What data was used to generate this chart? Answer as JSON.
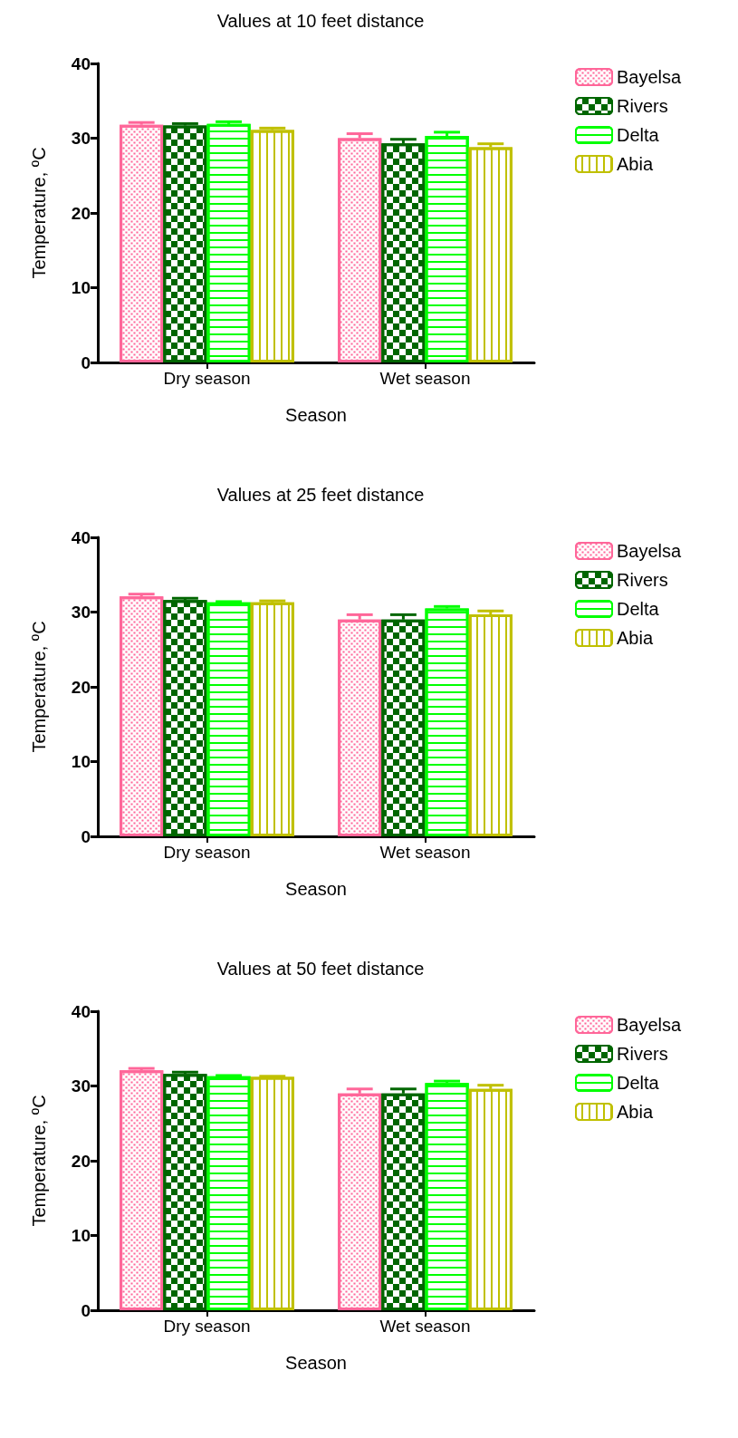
{
  "chart_data": [
    {
      "type": "bar",
      "title": "Values at 10 feet distance",
      "xlabel": "Season",
      "ylabel": "Temperature, ºC",
      "categories": [
        "Dry season",
        "Wet season"
      ],
      "ylim": [
        0,
        40
      ],
      "yticks": [
        0,
        10,
        20,
        30,
        40
      ],
      "legend": "top right",
      "grid": false,
      "series": [
        {
          "name": "Bayelsa",
          "color": "#ff6699",
          "values": [
            31.8,
            30.0
          ],
          "errors": [
            0.3,
            0.6
          ]
        },
        {
          "name": "Rivers",
          "color": "#006600",
          "values": [
            31.7,
            29.3
          ],
          "errors": [
            0.25,
            0.55
          ]
        },
        {
          "name": "Delta",
          "color": "#00ff00",
          "values": [
            31.9,
            30.3
          ],
          "errors": [
            0.3,
            0.5
          ]
        },
        {
          "name": "Abia",
          "color": "#c0c000",
          "values": [
            31.1,
            28.8
          ],
          "errors": [
            0.25,
            0.45
          ]
        }
      ]
    },
    {
      "type": "bar",
      "title": "Values at 25 feet distance",
      "xlabel": "Season",
      "ylabel": "Temperature, ºC",
      "categories": [
        "Dry season",
        "Wet season"
      ],
      "ylim": [
        0,
        40
      ],
      "yticks": [
        0,
        10,
        20,
        30,
        40
      ],
      "legend": "top right",
      "grid": false,
      "series": [
        {
          "name": "Bayelsa",
          "color": "#ff6699",
          "values": [
            32.1,
            29.0
          ],
          "errors": [
            0.3,
            0.65
          ]
        },
        {
          "name": "Rivers",
          "color": "#006600",
          "values": [
            31.6,
            29.0
          ],
          "errors": [
            0.25,
            0.65
          ]
        },
        {
          "name": "Delta",
          "color": "#00ff00",
          "values": [
            31.3,
            30.5
          ],
          "errors": [
            0.1,
            0.25
          ]
        },
        {
          "name": "Abia",
          "color": "#c0c000",
          "values": [
            31.3,
            29.7
          ],
          "errors": [
            0.2,
            0.45
          ]
        }
      ]
    },
    {
      "type": "bar",
      "title": "Values at 50 feet distance",
      "xlabel": "Season",
      "ylabel": "Temperature, ºC",
      "categories": [
        "Dry season",
        "Wet season"
      ],
      "ylim": [
        0,
        40
      ],
      "yticks": [
        0,
        10,
        20,
        30,
        40
      ],
      "legend": "top right",
      "grid": false,
      "series": [
        {
          "name": "Bayelsa",
          "color": "#ff6699",
          "values": [
            32.1,
            29.0
          ],
          "errors": [
            0.25,
            0.6
          ]
        },
        {
          "name": "Rivers",
          "color": "#006600",
          "values": [
            31.6,
            29.0
          ],
          "errors": [
            0.25,
            0.6
          ]
        },
        {
          "name": "Delta",
          "color": "#00ff00",
          "values": [
            31.3,
            30.4
          ],
          "errors": [
            0.1,
            0.25
          ]
        },
        {
          "name": "Abia",
          "color": "#c0c000",
          "values": [
            31.2,
            29.6
          ],
          "errors": [
            0.1,
            0.5
          ]
        }
      ]
    }
  ]
}
